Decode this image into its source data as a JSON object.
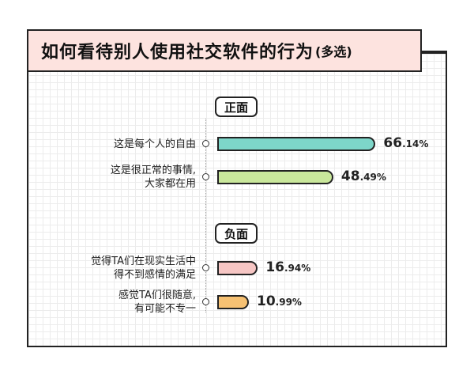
{
  "title": {
    "main": "如何看待别人使用社交软件的行为",
    "sub": "(多选)"
  },
  "sections": {
    "positive": "正面",
    "negative": "负面"
  },
  "colors": {
    "title_bg": "#fde3df",
    "bar1": "#7dd6c9",
    "bar2": "#c9e79b",
    "bar3": "#f6c6c4",
    "bar4": "#f6c173"
  },
  "chart_data": {
    "type": "bar",
    "orientation": "horizontal",
    "title": "如何看待别人使用社交软件的行为(多选)",
    "groups": [
      "正面",
      "正面",
      "负面",
      "负面"
    ],
    "categories": [
      "这是每个人的自由",
      "这是很正常的事情,\n大家都在用",
      "觉得TA们在现实生活中\n得不到感情的满足",
      "感觉TA们很随意,\n有可能不专一"
    ],
    "values": [
      66.14,
      48.49,
      16.94,
      10.99
    ],
    "value_labels": [
      {
        "int": "66",
        "dec": ".14%"
      },
      {
        "int": "48",
        "dec": ".49%"
      },
      {
        "int": "16",
        "dec": ".94%"
      },
      {
        "int": "10",
        "dec": ".99%"
      }
    ],
    "unit": "%",
    "xlim": [
      0,
      100
    ]
  }
}
